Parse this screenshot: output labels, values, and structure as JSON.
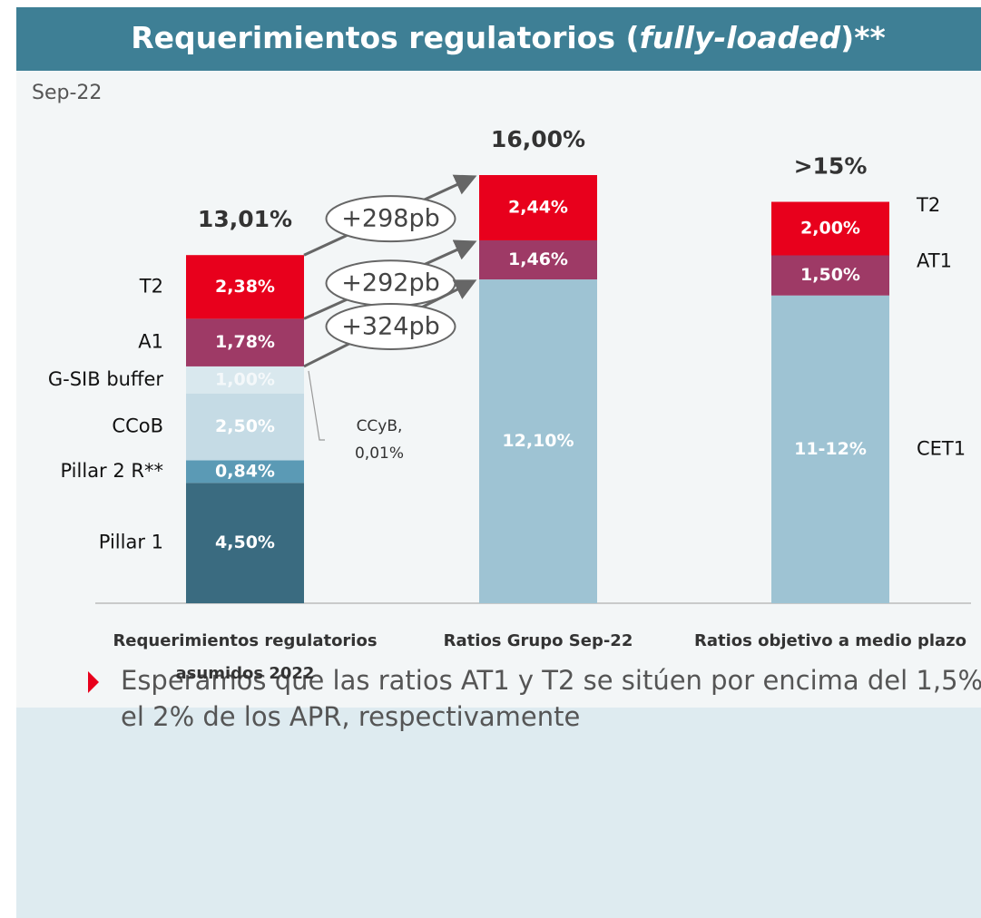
{
  "chart_data": {
    "type": "bar",
    "stacked": true,
    "title": [
      "Requerimientos regulatorios (",
      "fully-loaded",
      ")**"
    ],
    "subtitle": "Sep-22",
    "categories": [
      [
        "Requerimientos regulatorios",
        "asumidos 2022"
      ],
      [
        "Ratios Grupo Sep-22"
      ],
      [
        "Ratios objetivo a medio plazo"
      ]
    ],
    "ylim": [
      0,
      17
    ],
    "series": [
      {
        "name": "Pillar 1",
        "color": "#3a6b80",
        "values": [
          4.5,
          null,
          null
        ],
        "value_labels": [
          "4,50%",
          null,
          null
        ]
      },
      {
        "name": "Pillar 2 R**",
        "color": "#5b9ab5",
        "values": [
          0.84,
          null,
          null
        ],
        "value_labels": [
          "0,84%",
          null,
          null
        ]
      },
      {
        "name": "CCoB",
        "color": "#c5dbe5",
        "values": [
          2.5,
          null,
          null
        ],
        "value_labels": [
          "2,50%",
          null,
          null
        ]
      },
      {
        "name": "G-SIB buffer",
        "color": "#d9e8ee",
        "values": [
          1.0,
          null,
          null
        ],
        "value_labels": [
          "1,00%",
          null,
          null
        ]
      },
      {
        "name": "CCyB,",
        "color": "#c5dbe5",
        "values": [
          0.01,
          null,
          null
        ],
        "value_labels": [
          "0,01%",
          null,
          null
        ]
      },
      {
        "name": "CET1",
        "color": "#9ec3d3",
        "values": [
          null,
          12.1,
          11.5
        ],
        "value_labels": [
          null,
          "12,10%",
          "11-12%"
        ]
      },
      {
        "name": "A1",
        "color": "#9e3a66",
        "values": [
          1.78,
          null,
          null
        ],
        "value_labels": [
          "1,78%",
          null,
          null
        ]
      },
      {
        "name": "AT1",
        "color": "#9e3a66",
        "values": [
          null,
          1.46,
          1.5
        ],
        "value_labels": [
          null,
          "1,46%",
          "1,50%"
        ]
      },
      {
        "name": "T2",
        "color": "#e8001c",
        "values": [
          2.38,
          2.44,
          2.0
        ],
        "value_labels": [
          "2,38%",
          "2,44%",
          "2,00%"
        ]
      }
    ],
    "totals": [
      13.01,
      16.0,
      15
    ],
    "total_labels": [
      "13,01%",
      "16,00%",
      ">15%"
    ],
    "annotations": [
      "+298pb",
      "+292pb",
      "+324pb"
    ],
    "note": [
      "Esperamos que las ratios AT1 y T2 se sitúen por encima del 1,5% y",
      "el 2% de los APR, respectivamente"
    ]
  }
}
